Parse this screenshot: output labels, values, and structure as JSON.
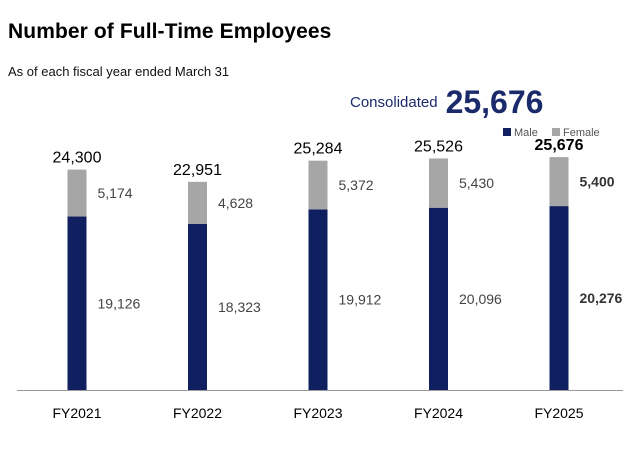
{
  "title": "Number of Full-Time Employees",
  "subtitle": "As of each fiscal year ended March 31",
  "consolidated": {
    "label": "Consolidated",
    "value": "25,676"
  },
  "colors": {
    "male": "#0f1f5f",
    "female": "#a6a6a6",
    "axis": "#999999",
    "accent": "#1b2a6b"
  },
  "chart_data": {
    "type": "bar",
    "stacked": true,
    "categories": [
      "FY2021",
      "FY2022",
      "FY2023",
      "FY2024",
      "FY2025"
    ],
    "series": [
      {
        "name": "Male",
        "values": [
          19126,
          18323,
          19912,
          20096,
          20276
        ],
        "labels": [
          "19,126",
          "18,323",
          "19,912",
          "20,096",
          "20,276"
        ]
      },
      {
        "name": "Female",
        "values": [
          5174,
          4628,
          5372,
          5430,
          5400
        ],
        "labels": [
          "5,174",
          "4,628",
          "5,372",
          "5,430",
          "5,400"
        ]
      }
    ],
    "totals": [
      24300,
      22951,
      25284,
      25526,
      25676
    ],
    "total_labels": [
      "24,300",
      "22,951",
      "25,284",
      "25,526",
      "25,676"
    ],
    "highlight_index": 4,
    "ylim": [
      0,
      30000
    ],
    "legend": "top-right",
    "grid": false
  }
}
